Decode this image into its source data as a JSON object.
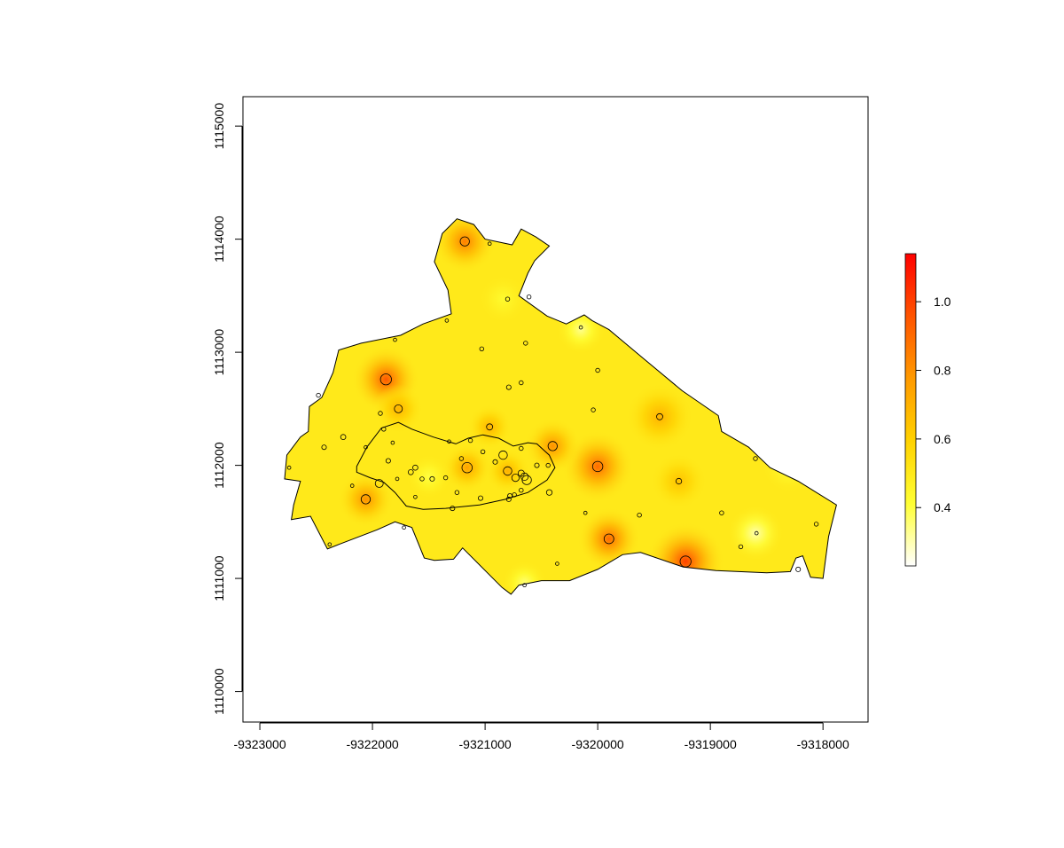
{
  "chart_data": {
    "type": "heatmap",
    "title": "",
    "xlabel": "",
    "ylabel": "",
    "xlim": [
      -9323150,
      -9317600
    ],
    "ylim": [
      1109730,
      1115260
    ],
    "x_ticks": [
      -9323000,
      -9322000,
      -9321000,
      -9320000,
      -9319000,
      -9318000
    ],
    "x_tick_labels": [
      "-9323000",
      "-9322000",
      "-9321000",
      "-9320000",
      "-9319000",
      "-9318000"
    ],
    "y_ticks": [
      1110000,
      1111000,
      1112000,
      1113000,
      1114000,
      1115000
    ],
    "y_tick_labels": [
      "1110000",
      "1111000",
      "1112000",
      "1113000",
      "1114000",
      "1115000"
    ],
    "grid": false,
    "colorbar": {
      "range": [
        0.23,
        1.14
      ],
      "ticks": [
        0.4,
        0.6,
        0.8,
        1.0
      ],
      "tick_labels": [
        "0.4",
        "0.6",
        "0.8",
        "1.0"
      ],
      "colors": [
        "#ffffff",
        "#ffff33",
        "#ffd200",
        "#ff9a00",
        "#ff5400",
        "#ff0000"
      ]
    },
    "background_value": 0.5,
    "hotspots": [
      {
        "x": -9321880,
        "y": 1112760,
        "value": 0.95,
        "r": 300
      },
      {
        "x": -9321180,
        "y": 1113980,
        "value": 0.85,
        "r": 280
      },
      {
        "x": -9319220,
        "y": 1111150,
        "value": 1.0,
        "r": 350
      },
      {
        "x": -9319900,
        "y": 1111350,
        "value": 0.9,
        "r": 280
      },
      {
        "x": -9320000,
        "y": 1111990,
        "value": 0.9,
        "r": 320
      },
      {
        "x": -9320400,
        "y": 1112170,
        "value": 0.8,
        "r": 250
      },
      {
        "x": -9322060,
        "y": 1111700,
        "value": 0.8,
        "r": 250
      },
      {
        "x": -9321770,
        "y": 1112500,
        "value": 0.7,
        "r": 220
      },
      {
        "x": -9321160,
        "y": 1111980,
        "value": 0.75,
        "r": 220
      },
      {
        "x": -9319450,
        "y": 1112430,
        "value": 0.7,
        "r": 300
      },
      {
        "x": -9320800,
        "y": 1111950,
        "value": 0.7,
        "r": 200
      },
      {
        "x": -9319280,
        "y": 1111860,
        "value": 0.65,
        "r": 250
      },
      {
        "x": -9320960,
        "y": 1112340,
        "value": 0.7,
        "r": 200
      },
      {
        "x": -9318600,
        "y": 1111400,
        "value": 0.3,
        "r": 250
      },
      {
        "x": -9320150,
        "y": 1113200,
        "value": 0.33,
        "r": 220
      },
      {
        "x": -9320650,
        "y": 1110960,
        "value": 0.35,
        "r": 200
      },
      {
        "x": -9321500,
        "y": 1111900,
        "value": 0.4,
        "r": 200
      },
      {
        "x": -9320840,
        "y": 1113470,
        "value": 0.43,
        "r": 220
      },
      {
        "x": -9318300,
        "y": 1112000,
        "value": 0.4,
        "r": 250
      }
    ],
    "boundary": [
      [
        -9322720,
        1111520
      ],
      [
        -9322550,
        1111550
      ],
      [
        -9322400,
        1111260
      ],
      [
        -9322300,
        1111300
      ],
      [
        -9321960,
        1111430
      ],
      [
        -9321800,
        1111500
      ],
      [
        -9321650,
        1111450
      ],
      [
        -9321540,
        1111180
      ],
      [
        -9321450,
        1111160
      ],
      [
        -9321280,
        1111170
      ],
      [
        -9321200,
        1111270
      ],
      [
        -9320850,
        1110920
      ],
      [
        -9320770,
        1110860
      ],
      [
        -9320700,
        1110940
      ],
      [
        -9320500,
        1110980
      ],
      [
        -9320250,
        1110980
      ],
      [
        -9320000,
        1111080
      ],
      [
        -9319780,
        1111210
      ],
      [
        -9319620,
        1111230
      ],
      [
        -9319240,
        1111100
      ],
      [
        -9318950,
        1111070
      ],
      [
        -9318500,
        1111050
      ],
      [
        -9318290,
        1111060
      ],
      [
        -9318240,
        1111180
      ],
      [
        -9318180,
        1111200
      ],
      [
        -9318110,
        1111010
      ],
      [
        -9318000,
        1111000
      ],
      [
        -9317950,
        1111370
      ],
      [
        -9317880,
        1111650
      ],
      [
        -9318220,
        1111860
      ],
      [
        -9318470,
        1111980
      ],
      [
        -9318660,
        1112160
      ],
      [
        -9318900,
        1112300
      ],
      [
        -9318930,
        1112440
      ],
      [
        -9319250,
        1112660
      ],
      [
        -9319600,
        1112950
      ],
      [
        -9319900,
        1113200
      ],
      [
        -9320050,
        1113280
      ],
      [
        -9320120,
        1113330
      ],
      [
        -9320280,
        1113250
      ],
      [
        -9320450,
        1113320
      ],
      [
        -9320700,
        1113500
      ],
      [
        -9320620,
        1113700
      ],
      [
        -9320560,
        1113810
      ],
      [
        -9320430,
        1113940
      ],
      [
        -9320550,
        1114020
      ],
      [
        -9320680,
        1114090
      ],
      [
        -9320760,
        1113950
      ],
      [
        -9321000,
        1114000
      ],
      [
        -9321100,
        1114130
      ],
      [
        -9321250,
        1114180
      ],
      [
        -9321380,
        1114050
      ],
      [
        -9321450,
        1113800
      ],
      [
        -9321330,
        1113550
      ],
      [
        -9321300,
        1113340
      ],
      [
        -9321550,
        1113250
      ],
      [
        -9321750,
        1113150
      ],
      [
        -9322100,
        1113080
      ],
      [
        -9322300,
        1113020
      ],
      [
        -9322350,
        1112820
      ],
      [
        -9322450,
        1112600
      ],
      [
        -9322560,
        1112520
      ],
      [
        -9322570,
        1112300
      ],
      [
        -9322640,
        1112250
      ],
      [
        -9322760,
        1112090
      ],
      [
        -9322780,
        1111880
      ],
      [
        -9322640,
        1111860
      ],
      [
        -9322700,
        1111650
      ]
    ],
    "inner_boundary": [
      [
        -9322140,
        1111990
      ],
      [
        -9322050,
        1112160
      ],
      [
        -9321920,
        1112330
      ],
      [
        -9321770,
        1112380
      ],
      [
        -9321650,
        1112320
      ],
      [
        -9321460,
        1112250
      ],
      [
        -9321260,
        1112190
      ],
      [
        -9321150,
        1112240
      ],
      [
        -9321020,
        1112270
      ],
      [
        -9320880,
        1112240
      ],
      [
        -9320750,
        1112170
      ],
      [
        -9320620,
        1112200
      ],
      [
        -9320540,
        1112190
      ],
      [
        -9320430,
        1112090
      ],
      [
        -9320380,
        1111980
      ],
      [
        -9320450,
        1111870
      ],
      [
        -9320620,
        1111760
      ],
      [
        -9320820,
        1111700
      ],
      [
        -9321050,
        1111650
      ],
      [
        -9321350,
        1111620
      ],
      [
        -9321550,
        1111610
      ],
      [
        -9321700,
        1111640
      ],
      [
        -9321800,
        1111760
      ],
      [
        -9321900,
        1111850
      ],
      [
        -9322020,
        1111890
      ],
      [
        -9322140,
        1111940
      ]
    ],
    "points": [
      {
        "x": -9321880,
        "y": 1112760,
        "v": 1.0
      },
      {
        "x": -9321180,
        "y": 1113980,
        "v": 0.85
      },
      {
        "x": -9319220,
        "y": 1111150,
        "v": 1.0
      },
      {
        "x": -9319900,
        "y": 1111350,
        "v": 0.9
      },
      {
        "x": -9320000,
        "y": 1111990,
        "v": 0.95
      },
      {
        "x": -9320400,
        "y": 1112170,
        "v": 0.85
      },
      {
        "x": -9322060,
        "y": 1111700,
        "v": 0.85
      },
      {
        "x": -9321770,
        "y": 1112500,
        "v": 0.75
      },
      {
        "x": -9321160,
        "y": 1111980,
        "v": 0.95
      },
      {
        "x": -9320800,
        "y": 1111950,
        "v": 0.8
      },
      {
        "x": -9320840,
        "y": 1112090,
        "v": 0.8
      },
      {
        "x": -9321940,
        "y": 1111840,
        "v": 0.75
      },
      {
        "x": -9320630,
        "y": 1111870,
        "v": 0.85
      },
      {
        "x": -9320650,
        "y": 1111900,
        "v": 0.7
      },
      {
        "x": -9320680,
        "y": 1111930,
        "v": 0.6
      },
      {
        "x": -9320730,
        "y": 1111890,
        "v": 0.7
      },
      {
        "x": -9320960,
        "y": 1112340,
        "v": 0.6
      },
      {
        "x": -9319450,
        "y": 1112430,
        "v": 0.6
      },
      {
        "x": -9319280,
        "y": 1111860,
        "v": 0.55
      },
      {
        "x": -9320430,
        "y": 1111760,
        "v": 0.55
      },
      {
        "x": -9322260,
        "y": 1112250,
        "v": 0.5
      },
      {
        "x": -9321620,
        "y": 1111980,
        "v": 0.5
      },
      {
        "x": -9321660,
        "y": 1111940,
        "v": 0.5
      },
      {
        "x": -9322430,
        "y": 1112160,
        "v": 0.45
      },
      {
        "x": -9321210,
        "y": 1112060,
        "v": 0.4
      },
      {
        "x": -9320910,
        "y": 1112030,
        "v": 0.45
      },
      {
        "x": -9321020,
        "y": 1112120,
        "v": 0.4
      },
      {
        "x": -9320780,
        "y": 1111730,
        "v": 0.45
      },
      {
        "x": -9320790,
        "y": 1111700,
        "v": 0.45
      },
      {
        "x": -9320740,
        "y": 1111740,
        "v": 0.4
      },
      {
        "x": -9320680,
        "y": 1111780,
        "v": 0.4
      },
      {
        "x": -9320680,
        "y": 1112150,
        "v": 0.4
      },
      {
        "x": -9320540,
        "y": 1112000,
        "v": 0.45
      },
      {
        "x": -9320440,
        "y": 1112000,
        "v": 0.4
      },
      {
        "x": -9321130,
        "y": 1112220,
        "v": 0.4
      },
      {
        "x": -9321560,
        "y": 1111880,
        "v": 0.4
      },
      {
        "x": -9321470,
        "y": 1111880,
        "v": 0.45
      },
      {
        "x": -9321350,
        "y": 1111890,
        "v": 0.4
      },
      {
        "x": -9321250,
        "y": 1111760,
        "v": 0.4
      },
      {
        "x": -9321040,
        "y": 1111710,
        "v": 0.45
      },
      {
        "x": -9321290,
        "y": 1111620,
        "v": 0.45
      },
      {
        "x": -9321320,
        "y": 1112210,
        "v": 0.35
      },
      {
        "x": -9321860,
        "y": 1112040,
        "v": 0.45
      },
      {
        "x": -9321900,
        "y": 1112320,
        "v": 0.4
      },
      {
        "x": -9321930,
        "y": 1112460,
        "v": 0.4
      },
      {
        "x": -9322060,
        "y": 1112160,
        "v": 0.35
      },
      {
        "x": -9321820,
        "y": 1112200,
        "v": 0.35
      },
      {
        "x": -9321780,
        "y": 1111880,
        "v": 0.35
      },
      {
        "x": -9321620,
        "y": 1111720,
        "v": 0.35
      },
      {
        "x": -9322180,
        "y": 1111820,
        "v": 0.35
      },
      {
        "x": -9322740,
        "y": 1111980,
        "v": 0.35
      },
      {
        "x": -9322480,
        "y": 1112620,
        "v": 0.4
      },
      {
        "x": -9321800,
        "y": 1113110,
        "v": 0.35
      },
      {
        "x": -9321340,
        "y": 1113280,
        "v": 0.35
      },
      {
        "x": -9321030,
        "y": 1113030,
        "v": 0.4
      },
      {
        "x": -9320960,
        "y": 1113960,
        "v": 0.35
      },
      {
        "x": -9320800,
        "y": 1113470,
        "v": 0.4
      },
      {
        "x": -9320610,
        "y": 1113490,
        "v": 0.4
      },
      {
        "x": -9320640,
        "y": 1113080,
        "v": 0.4
      },
      {
        "x": -9320790,
        "y": 1112690,
        "v": 0.45
      },
      {
        "x": -9320680,
        "y": 1112730,
        "v": 0.4
      },
      {
        "x": -9320000,
        "y": 1112840,
        "v": 0.4
      },
      {
        "x": -9320040,
        "y": 1112490,
        "v": 0.4
      },
      {
        "x": -9320150,
        "y": 1113220,
        "v": 0.35
      },
      {
        "x": -9320110,
        "y": 1111580,
        "v": 0.35
      },
      {
        "x": -9319630,
        "y": 1111560,
        "v": 0.4
      },
      {
        "x": -9320360,
        "y": 1111130,
        "v": 0.35
      },
      {
        "x": -9320650,
        "y": 1110940,
        "v": 0.35
      },
      {
        "x": -9321720,
        "y": 1111450,
        "v": 0.35
      },
      {
        "x": -9322380,
        "y": 1111300,
        "v": 0.35
      },
      {
        "x": -9318900,
        "y": 1111580,
        "v": 0.4
      },
      {
        "x": -9318590,
        "y": 1111400,
        "v": 0.35
      },
      {
        "x": -9318730,
        "y": 1111280,
        "v": 0.4
      },
      {
        "x": -9318600,
        "y": 1112060,
        "v": 0.4
      },
      {
        "x": -9318060,
        "y": 1111480,
        "v": 0.4
      },
      {
        "x": -9318220,
        "y": 1111080,
        "v": 0.45
      }
    ]
  }
}
